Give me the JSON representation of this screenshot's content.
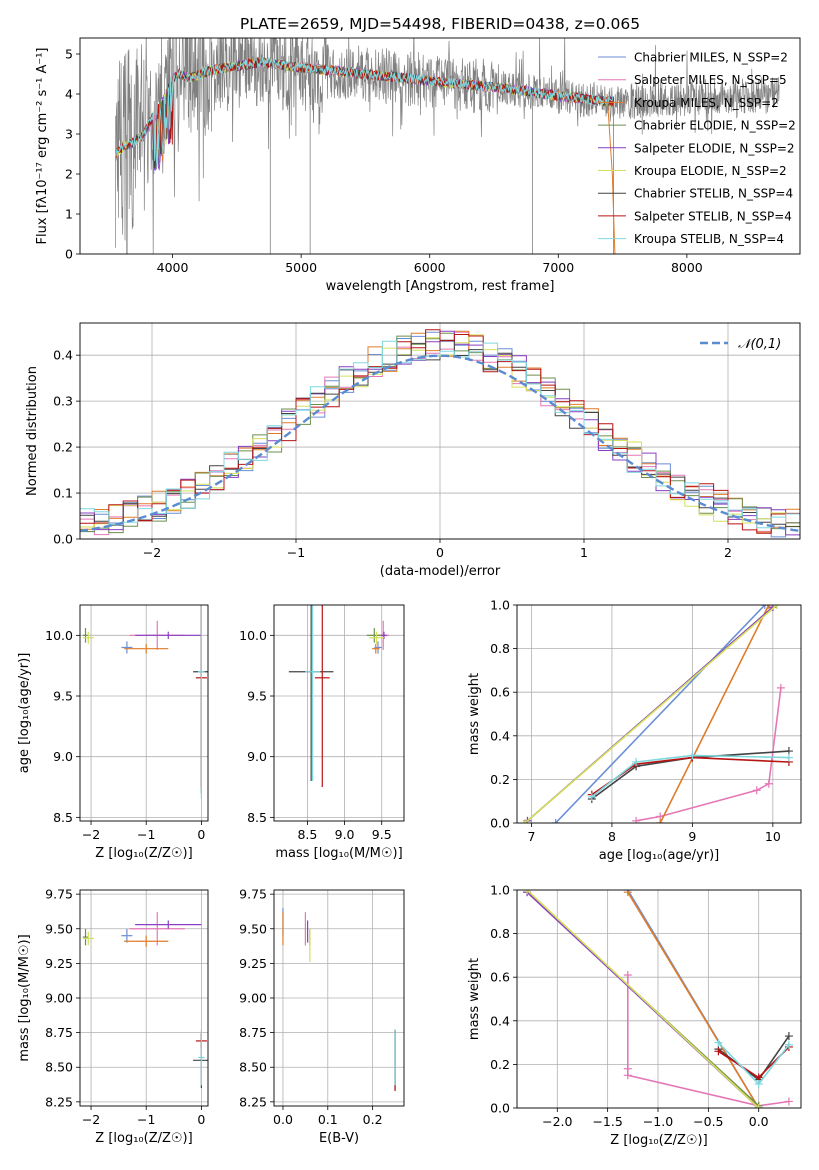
{
  "figure_title": "PLATE=2659, MJD=54498, FIBERID=0438, z=0.065",
  "model_colors": {
    "Chabrier MILES": "#6a8fd6",
    "Salpeter MILES": "#e577b7",
    "Kroupa MILES": "#e07c28",
    "Chabrier ELODIE": "#6e8f4c",
    "Salpeter ELODIE": "#8a3fc4",
    "Kroupa ELODIE": "#d4e05a",
    "Chabrier STELIB": "#444444",
    "Salpeter STELIB": "#b81414",
    "Kroupa STELIB": "#7fd8df",
    "data": "#808080"
  },
  "chart_data": [
    {
      "id": "spectrum",
      "type": "line",
      "xlabel": "wavelength [Angstrom, rest frame]",
      "ylabel": "Flux [fλ10⁻¹⁷ erg cm⁻² s⁻¹ A⁻¹]",
      "xlim": [
        3280,
        8880
      ],
      "ylim": [
        0,
        5.4
      ],
      "xticks": [
        4000,
        5000,
        6000,
        7000,
        8000
      ],
      "yticks": [
        0,
        1,
        2,
        3,
        4,
        5
      ],
      "grid": false,
      "legend_position": "right",
      "legend": [
        {
          "model": "Chabrier MILES",
          "label": "Chabrier MILES, N_SSP=2"
        },
        {
          "model": "Salpeter MILES",
          "label": "Salpeter MILES, N_SSP=5"
        },
        {
          "model": "Kroupa MILES",
          "label": "Kroupa MILES, N_SSP=2"
        },
        {
          "model": "Chabrier ELODIE",
          "label": "Chabrier ELODIE, N_SSP=2"
        },
        {
          "model": "Salpeter ELODIE",
          "label": "Salpeter ELODIE, N_SSP=2"
        },
        {
          "model": "Kroupa ELODIE",
          "label": "Kroupa ELODIE, N_SSP=2"
        },
        {
          "model": "Chabrier STELIB",
          "label": "Chabrier STELIB, N_SSP=4"
        },
        {
          "model": "Salpeter STELIB",
          "label": "Salpeter STELIB, N_SSP=4"
        },
        {
          "model": "Kroupa STELIB",
          "label": "Kroupa STELIB, N_SSP=4"
        }
      ],
      "continuum": {
        "x": [
          3560,
          3620,
          3700,
          3780,
          3900,
          3960,
          4050,
          4150,
          4300,
          4500,
          4700,
          4900,
          5200,
          5500,
          5800,
          6100,
          6400,
          6700,
          7000,
          7300,
          7500,
          7700,
          8000,
          8300,
          8700
        ],
        "y": [
          2.5,
          2.7,
          2.8,
          3.0,
          3.8,
          4.3,
          4.5,
          4.4,
          4.6,
          4.7,
          4.8,
          4.7,
          4.6,
          4.5,
          4.4,
          4.3,
          4.2,
          4.1,
          3.95,
          3.85,
          3.8,
          3.85,
          3.9,
          3.95,
          4.0
        ]
      },
      "model_x_range": [
        3560,
        7430
      ]
    },
    {
      "id": "residuals",
      "type": "histogram",
      "xlabel": "(data-model)/error",
      "ylabel": "Normed distribution",
      "xlim": [
        -2.5,
        2.5
      ],
      "ylim": [
        0,
        0.47
      ],
      "xticks": [
        -2,
        -1,
        0,
        1,
        2
      ],
      "yticks": [
        0.0,
        0.1,
        0.2,
        0.3,
        0.4
      ],
      "grid": true,
      "legend_position": "top-right",
      "legend": "𝒩(0,1)",
      "bin_width": 0.1
    },
    {
      "id": "age_vs_Z",
      "type": "errorbar",
      "xlabel": "Z [log₁₀(Z/Z☉)]",
      "ylabel": "age  [log₁₀(age/yr)]",
      "xlim": [
        -2.2,
        0.12
      ],
      "ylim": [
        8.47,
        10.25
      ],
      "xticks": [
        -2,
        -1,
        0
      ],
      "yticks": [
        8.5,
        9.0,
        9.5,
        10.0
      ],
      "grid": true,
      "points": [
        {
          "model": "Chabrier MILES",
          "x": -1.35,
          "y": 9.9,
          "xerr": 0.1,
          "yerr": 0.05
        },
        {
          "model": "Salpeter MILES",
          "x": -0.8,
          "y": 10.0,
          "xerr": 0.5,
          "yerr": 0.12
        },
        {
          "model": "Kroupa MILES",
          "x": -1.0,
          "y": 9.89,
          "xerr": 0.4,
          "yerr": 0.04
        },
        {
          "model": "Chabrier ELODIE",
          "x": -2.1,
          "y": 10.0,
          "xerr": 0.05,
          "yerr": 0.06
        },
        {
          "model": "Salpeter ELODIE",
          "x": -0.6,
          "y": 10.0,
          "xerr": 0.6,
          "yerr": 0.03
        },
        {
          "model": "Kroupa ELODIE",
          "x": -2.05,
          "y": 9.98,
          "xerr": 0.1,
          "yerr": 0.05
        },
        {
          "model": "Chabrier STELIB",
          "x": 0.0,
          "y": 9.7,
          "xerr": 0.15,
          "yerr": 1.0
        },
        {
          "model": "Salpeter STELIB",
          "x": 0.0,
          "y": 9.65,
          "xerr": 0.1,
          "yerr": 0.9
        },
        {
          "model": "Kroupa STELIB",
          "x": 0.0,
          "y": 9.7,
          "xerr": 0.06,
          "yerr": 1.05
        }
      ]
    },
    {
      "id": "age_vs_mass",
      "type": "errorbar",
      "xlabel": "mass [log₁₀(M/M☉)]",
      "ylabel": "",
      "xlim": [
        8.05,
        9.8
      ],
      "ylim": [
        8.47,
        10.25
      ],
      "xticks": [
        8.5,
        9.0,
        9.5
      ],
      "yticks": [
        8.5,
        9.0,
        9.5,
        10.0
      ],
      "grid": true,
      "points": [
        {
          "model": "Chabrier MILES",
          "x": 9.45,
          "y": 9.9,
          "xerr": 0.05,
          "yerr": 0.05
        },
        {
          "model": "Salpeter MILES",
          "x": 9.52,
          "y": 10.0,
          "xerr": 0.08,
          "yerr": 0.12
        },
        {
          "model": "Kroupa MILES",
          "x": 9.42,
          "y": 9.89,
          "xerr": 0.05,
          "yerr": 0.04
        },
        {
          "model": "Chabrier ELODIE",
          "x": 9.4,
          "y": 10.0,
          "xerr": 0.1,
          "yerr": 0.06
        },
        {
          "model": "Salpeter ELODIE",
          "x": 9.53,
          "y": 10.0,
          "xerr": 0.04,
          "yerr": 0.03
        },
        {
          "model": "Kroupa ELODIE",
          "x": 9.43,
          "y": 9.98,
          "xerr": 0.1,
          "yerr": 0.05
        },
        {
          "model": "Chabrier STELIB",
          "x": 8.55,
          "y": 9.7,
          "xerr": 0.3,
          "yerr": 0.9
        },
        {
          "model": "Salpeter STELIB",
          "x": 8.7,
          "y": 9.65,
          "xerr": 0.1,
          "yerr": 0.9
        },
        {
          "model": "Kroupa STELIB",
          "x": 8.57,
          "y": 9.7,
          "xerr": 0.1,
          "yerr": 0.9
        }
      ]
    },
    {
      "id": "mass_weight_vs_age",
      "type": "line",
      "xlabel": "age  [log₁₀(age/yr)]",
      "ylabel": "mass weight",
      "xlim": [
        6.82,
        10.35
      ],
      "ylim": [
        0,
        1.0
      ],
      "xticks": [
        7,
        8,
        9,
        10
      ],
      "yticks": [
        0.0,
        0.2,
        0.4,
        0.6,
        0.8,
        1.0
      ],
      "grid": true,
      "series": [
        {
          "model": "Chabrier MILES",
          "x": [
            7.3,
            9.9
          ],
          "y": [
            0.0,
            1.0
          ]
        },
        {
          "model": "Salpeter MILES",
          "x": [
            8.3,
            8.6,
            9.8,
            9.95,
            10.1
          ],
          "y": [
            0.01,
            0.03,
            0.15,
            0.18,
            0.62
          ]
        },
        {
          "model": "Kroupa MILES",
          "x": [
            8.6,
            9.95
          ],
          "y": [
            0.0,
            1.0
          ]
        },
        {
          "model": "Chabrier ELODIE",
          "x": [
            6.95,
            10.0
          ],
          "y": [
            0.01,
            0.99
          ]
        },
        {
          "model": "Salpeter ELODIE",
          "x": [
            6.95,
            10.0
          ],
          "y": [
            0.01,
            0.99
          ]
        },
        {
          "model": "Kroupa ELODIE",
          "x": [
            6.92,
            10.05
          ],
          "y": [
            0.0,
            1.0
          ]
        },
        {
          "model": "Chabrier STELIB",
          "x": [
            7.75,
            8.3,
            9.0,
            10.2
          ],
          "y": [
            0.11,
            0.26,
            0.3,
            0.33
          ]
        },
        {
          "model": "Salpeter STELIB",
          "x": [
            7.75,
            8.3,
            9.0,
            10.2
          ],
          "y": [
            0.13,
            0.27,
            0.3,
            0.28
          ]
        },
        {
          "model": "Kroupa STELIB",
          "x": [
            7.75,
            8.3,
            9.0,
            10.2
          ],
          "y": [
            0.12,
            0.28,
            0.31,
            0.3
          ]
        }
      ]
    },
    {
      "id": "mass_vs_Z",
      "type": "errorbar",
      "xlabel": "Z [log₁₀(Z/Z☉)]",
      "ylabel": "mass [log₁₀(M/M☉)]",
      "xlim": [
        -2.2,
        0.12
      ],
      "ylim": [
        8.22,
        9.78
      ],
      "xticks": [
        -2,
        -1,
        0
      ],
      "yticks": [
        8.25,
        8.5,
        8.75,
        9.0,
        9.25,
        9.5,
        9.75
      ],
      "grid": true,
      "points": [
        {
          "model": "Chabrier MILES",
          "x": -1.35,
          "y": 9.45,
          "xerr": 0.1,
          "yerr": 0.05
        },
        {
          "model": "Salpeter MILES",
          "x": -0.8,
          "y": 9.5,
          "xerr": 0.5,
          "yerr": 0.12
        },
        {
          "model": "Kroupa MILES",
          "x": -1.0,
          "y": 9.41,
          "xerr": 0.4,
          "yerr": 0.04
        },
        {
          "model": "Chabrier ELODIE",
          "x": -2.1,
          "y": 9.44,
          "xerr": 0.05,
          "yerr": 0.06
        },
        {
          "model": "Salpeter ELODIE",
          "x": -0.6,
          "y": 9.53,
          "xerr": 0.6,
          "yerr": 0.03
        },
        {
          "model": "Kroupa ELODIE",
          "x": -2.05,
          "y": 9.43,
          "xerr": 0.1,
          "yerr": 0.05
        },
        {
          "model": "Chabrier STELIB",
          "x": 0.0,
          "y": 8.55,
          "xerr": 0.15,
          "yerr": 0.2
        },
        {
          "model": "Salpeter STELIB",
          "x": 0.0,
          "y": 8.69,
          "xerr": 0.1,
          "yerr": 0.05
        },
        {
          "model": "Kroupa STELIB",
          "x": 0.0,
          "y": 8.57,
          "xerr": 0.06,
          "yerr": 0.2
        }
      ]
    },
    {
      "id": "mass_vs_ebv",
      "type": "errorbar",
      "xlabel": "E(B-V)",
      "ylabel": "",
      "xlim": [
        -0.02,
        0.27
      ],
      "ylim": [
        8.22,
        9.78
      ],
      "xticks": [
        0.0,
        0.1,
        0.2
      ],
      "yticks": [
        8.25,
        8.5,
        8.75,
        9.0,
        9.25,
        9.5,
        9.75
      ],
      "grid": true,
      "points": [
        {
          "model": "Chabrier MILES",
          "x": 0.0,
          "y": 9.55,
          "xerr": 0.0,
          "yerr": 0.1
        },
        {
          "model": "Salpeter MILES",
          "x": 0.05,
          "y": 9.5,
          "xerr": 0.0,
          "yerr": 0.12
        },
        {
          "model": "Kroupa MILES",
          "x": 0.0,
          "y": 9.5,
          "xerr": 0.0,
          "yerr": 0.12
        },
        {
          "model": "Chabrier ELODIE",
          "x": 0.06,
          "y": 9.44,
          "xerr": 0.0,
          "yerr": 0.06
        },
        {
          "model": "Salpeter ELODIE",
          "x": 0.055,
          "y": 9.48,
          "xerr": 0.0,
          "yerr": 0.08
        },
        {
          "model": "Kroupa ELODIE",
          "x": 0.06,
          "y": 9.38,
          "xerr": 0.0,
          "yerr": 0.12
        },
        {
          "model": "Chabrier STELIB",
          "x": 0.25,
          "y": 8.55,
          "xerr": 0.0,
          "yerr": 0.22
        },
        {
          "model": "Salpeter STELIB",
          "x": 0.25,
          "y": 8.55,
          "xerr": 0.0,
          "yerr": 0.22
        },
        {
          "model": "Kroupa STELIB",
          "x": 0.25,
          "y": 8.57,
          "xerr": 0.0,
          "yerr": 0.2
        }
      ]
    },
    {
      "id": "mass_weight_vs_Z",
      "type": "line",
      "xlabel": "Z [log₁₀(Z/Z☉)]",
      "ylabel": "mass weight",
      "xlim": [
        -2.4,
        0.42
      ],
      "ylim": [
        0,
        1.0
      ],
      "xticks": [
        -2.0,
        -1.5,
        -1.0,
        -0.5,
        0.0
      ],
      "yticks": [
        0.0,
        0.2,
        0.4,
        0.6,
        0.8,
        1.0
      ],
      "grid": true,
      "series": [
        {
          "model": "Chabrier MILES",
          "x": [
            -1.3,
            0.0
          ],
          "y": [
            1.0,
            0.0
          ]
        },
        {
          "model": "Salpeter MILES",
          "x": [
            -1.3,
            -1.3,
            -1.3,
            0.0,
            0.3
          ],
          "y": [
            0.61,
            0.18,
            0.15,
            0.01,
            0.03
          ]
        },
        {
          "model": "Kroupa MILES",
          "x": [
            -1.3,
            0.0
          ],
          "y": [
            0.99,
            0.0
          ]
        },
        {
          "model": "Chabrier ELODIE",
          "x": [
            -2.3,
            0.0
          ],
          "y": [
            0.99,
            0.01
          ]
        },
        {
          "model": "Salpeter ELODIE",
          "x": [
            -2.3,
            0.0
          ],
          "y": [
            0.99,
            0.0
          ]
        },
        {
          "model": "Kroupa ELODIE",
          "x": [
            -2.3,
            0.0
          ],
          "y": [
            1.0,
            0.0
          ]
        },
        {
          "model": "Chabrier STELIB",
          "x": [
            -0.4,
            0.0,
            0.3
          ],
          "y": [
            0.27,
            0.13,
            0.33
          ]
        },
        {
          "model": "Salpeter STELIB",
          "x": [
            -0.4,
            0.0,
            0.3
          ],
          "y": [
            0.26,
            0.14,
            0.28
          ]
        },
        {
          "model": "Kroupa STELIB",
          "x": [
            -0.4,
            0.0,
            0.3
          ],
          "y": [
            0.3,
            0.11,
            0.29
          ]
        }
      ]
    }
  ]
}
